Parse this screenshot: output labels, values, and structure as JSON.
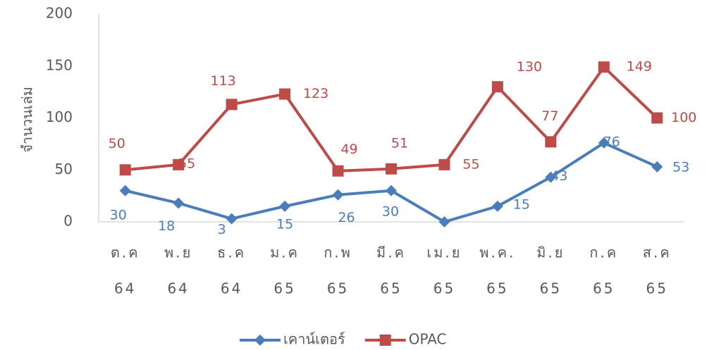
{
  "chart_data": {
    "type": "line",
    "y_label": "จำนวนเล่ม",
    "categories": [
      [
        "ต.ค",
        "64"
      ],
      [
        "พ.ย",
        "64"
      ],
      [
        "ธ.ค",
        "64"
      ],
      [
        "ม.ค",
        "65"
      ],
      [
        "ก.พ",
        "65"
      ],
      [
        "มี.ค",
        "65"
      ],
      [
        "เม.ย",
        "65"
      ],
      [
        "พ.ค.",
        "65"
      ],
      [
        "มิ.ย",
        "65"
      ],
      [
        "ก.ค",
        "65"
      ],
      [
        "ส.ค",
        "65"
      ]
    ],
    "series": [
      {
        "name": "เคาน์เตอร์",
        "color": "#4a7ebb",
        "marker": "diamond",
        "values": [
          30,
          18,
          3,
          15,
          26,
          30,
          0,
          15,
          43,
          76,
          53
        ],
        "value_labels": [
          "30",
          "18",
          "3",
          "15",
          "26",
          "30",
          null,
          "15",
          "43",
          "76",
          "53"
        ]
      },
      {
        "name": "OPAC",
        "color": "#be4b48",
        "marker": "square",
        "values": [
          50,
          55,
          113,
          123,
          49,
          51,
          55,
          130,
          77,
          149,
          100
        ]
      }
    ],
    "ylim": [
      0,
      200
    ],
    "yticks": [
      0,
      50,
      100,
      150,
      200
    ],
    "grid": false,
    "legend": "bottom"
  }
}
